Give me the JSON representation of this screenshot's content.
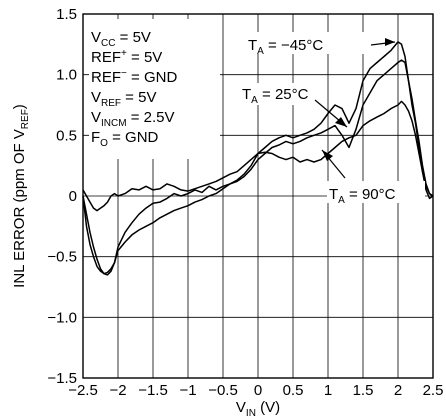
{
  "chart_data": {
    "type": "line",
    "title": "",
    "xlabel": {
      "base": "V",
      "sub": "IN",
      "unit": " (V)"
    },
    "ylabel": {
      "prefix": "INL ERROR (ppm OF V",
      "sub": "REF",
      "suffix": ")"
    },
    "xlim": [
      -2.5,
      2.5
    ],
    "ylim": [
      -1.5,
      1.5
    ],
    "grid": true,
    "legend": "none",
    "x_ticks": [
      {
        "v": -2.5,
        "label": "−2.5"
      },
      {
        "v": -2,
        "label": "−2"
      },
      {
        "v": -1.5,
        "label": "−1.5"
      },
      {
        "v": -1,
        "label": "−1"
      },
      {
        "v": -0.5,
        "label": "−0.5"
      },
      {
        "v": 0,
        "label": "0"
      },
      {
        "v": 0.5,
        "label": "0.5"
      },
      {
        "v": 1,
        "label": "1"
      },
      {
        "v": 1.5,
        "label": "1.5"
      },
      {
        "v": 2,
        "label": "2"
      },
      {
        "v": 2.5,
        "label": "2.5"
      }
    ],
    "y_ticks": [
      {
        "v": 1.5,
        "label": "1.5"
      },
      {
        "v": 1.0,
        "label": "1.0"
      },
      {
        "v": 0.5,
        "label": "0.5"
      },
      {
        "v": 0,
        "label": "0"
      },
      {
        "v": -0.5,
        "label": "−0.5"
      },
      {
        "v": -1.0,
        "label": "−1.0"
      },
      {
        "v": -1.5,
        "label": "−1.5"
      }
    ],
    "conditions": [
      {
        "base": "V",
        "sub": "CC",
        "rest": " = 5V"
      },
      {
        "base": "REF",
        "sup": "+",
        "rest": " = 5V"
      },
      {
        "base": "REF",
        "sup": "−",
        "rest": " = GND"
      },
      {
        "base": "V",
        "sub": "REF",
        "rest": " = 5V"
      },
      {
        "base": "V",
        "sub": "INCM",
        "rest": " = 2.5V"
      },
      {
        "base": "F",
        "sub": "O",
        "rest": " = GND"
      }
    ],
    "series": [
      {
        "name": "T_A = −45°C",
        "label": {
          "base": "T",
          "sub": "A",
          "rest": " = −45°C"
        },
        "x": [
          -2.5,
          -2.45,
          -2.4,
          -2.35,
          -2.3,
          -2.25,
          -2.2,
          -2.15,
          -2.1,
          -2.05,
          -2.0,
          -1.9,
          -1.8,
          -1.7,
          -1.6,
          -1.5,
          -1.4,
          -1.3,
          -1.2,
          -1.1,
          -1.0,
          -0.9,
          -0.8,
          -0.7,
          -0.6,
          -0.5,
          -0.4,
          -0.3,
          -0.2,
          -0.1,
          0.0,
          0.1,
          0.2,
          0.3,
          0.4,
          0.5,
          0.6,
          0.7,
          0.8,
          0.9,
          1.0,
          1.1,
          1.2,
          1.3,
          1.4,
          1.5,
          1.6,
          1.7,
          1.8,
          1.9,
          2.0,
          2.05,
          2.1,
          2.15,
          2.2,
          2.25,
          2.3,
          2.35,
          2.4,
          2.45,
          2.5
        ],
        "y": [
          0.0,
          -0.25,
          -0.4,
          -0.5,
          -0.58,
          -0.62,
          -0.64,
          -0.63,
          -0.6,
          -0.55,
          -0.45,
          -0.38,
          -0.32,
          -0.28,
          -0.25,
          -0.22,
          -0.18,
          -0.15,
          -0.12,
          -0.1,
          -0.08,
          -0.05,
          -0.03,
          0.0,
          0.02,
          0.06,
          0.1,
          0.13,
          0.18,
          0.25,
          0.35,
          0.4,
          0.45,
          0.48,
          0.5,
          0.48,
          0.5,
          0.52,
          0.55,
          0.6,
          0.68,
          0.75,
          0.72,
          0.6,
          0.72,
          0.95,
          1.05,
          1.1,
          1.15,
          1.2,
          1.27,
          1.25,
          1.15,
          0.95,
          0.75,
          0.6,
          0.4,
          0.2,
          0.05,
          -0.02,
          0.0
        ]
      },
      {
        "name": "T_A = 25°C",
        "label": {
          "base": "T",
          "sub": "A",
          "rest": " = 25°C"
        },
        "x": [
          -2.5,
          -2.45,
          -2.4,
          -2.35,
          -2.3,
          -2.25,
          -2.2,
          -2.15,
          -2.1,
          -2.05,
          -2.0,
          -1.9,
          -1.8,
          -1.7,
          -1.6,
          -1.5,
          -1.4,
          -1.3,
          -1.2,
          -1.1,
          -1.0,
          -0.9,
          -0.8,
          -0.7,
          -0.6,
          -0.5,
          -0.4,
          -0.3,
          -0.2,
          -0.1,
          0.0,
          0.1,
          0.2,
          0.3,
          0.4,
          0.5,
          0.6,
          0.7,
          0.8,
          0.9,
          1.0,
          1.1,
          1.2,
          1.3,
          1.4,
          1.5,
          1.6,
          1.7,
          1.8,
          1.9,
          2.0,
          2.05,
          2.1,
          2.15,
          2.2,
          2.25,
          2.3,
          2.35,
          2.4,
          2.45,
          2.5
        ],
        "y": [
          0.0,
          -0.15,
          -0.3,
          -0.42,
          -0.52,
          -0.6,
          -0.64,
          -0.65,
          -0.62,
          -0.55,
          -0.42,
          -0.3,
          -0.22,
          -0.15,
          -0.1,
          -0.06,
          -0.05,
          -0.02,
          0.02,
          0.0,
          0.02,
          0.05,
          0.03,
          0.08,
          0.05,
          0.08,
          0.1,
          0.12,
          0.16,
          0.22,
          0.3,
          0.35,
          0.4,
          0.42,
          0.45,
          0.43,
          0.45,
          0.48,
          0.5,
          0.52,
          0.55,
          0.58,
          0.5,
          0.4,
          0.55,
          0.75,
          0.85,
          0.95,
          1.0,
          1.05,
          1.1,
          1.12,
          1.1,
          0.95,
          0.8,
          0.62,
          0.45,
          0.25,
          0.1,
          0.02,
          0.0
        ]
      },
      {
        "name": "T_A = 90°C",
        "label": {
          "base": "T",
          "sub": "A",
          "rest": " = 90°C"
        },
        "x": [
          -2.5,
          -2.45,
          -2.4,
          -2.35,
          -2.3,
          -2.25,
          -2.2,
          -2.15,
          -2.1,
          -2.05,
          -2.0,
          -1.9,
          -1.8,
          -1.7,
          -1.6,
          -1.5,
          -1.4,
          -1.3,
          -1.2,
          -1.1,
          -1.0,
          -0.9,
          -0.8,
          -0.7,
          -0.6,
          -0.5,
          -0.4,
          -0.3,
          -0.2,
          -0.1,
          0.0,
          0.1,
          0.2,
          0.3,
          0.4,
          0.5,
          0.6,
          0.7,
          0.8,
          0.9,
          1.0,
          1.1,
          1.2,
          1.3,
          1.4,
          1.5,
          1.6,
          1.7,
          1.8,
          1.9,
          2.0,
          2.05,
          2.1,
          2.15,
          2.2,
          2.25,
          2.3,
          2.35,
          2.4,
          2.45,
          2.5
        ],
        "y": [
          0.05,
          0.0,
          -0.05,
          -0.1,
          -0.12,
          -0.1,
          -0.08,
          -0.05,
          0.0,
          0.02,
          0.0,
          0.02,
          0.06,
          0.05,
          0.08,
          0.05,
          0.06,
          0.1,
          0.08,
          0.05,
          0.04,
          0.06,
          0.08,
          0.1,
          0.12,
          0.15,
          0.18,
          0.2,
          0.25,
          0.3,
          0.35,
          0.36,
          0.35,
          0.32,
          0.3,
          0.32,
          0.28,
          0.3,
          0.28,
          0.3,
          0.35,
          0.4,
          0.45,
          0.48,
          0.5,
          0.58,
          0.62,
          0.65,
          0.68,
          0.72,
          0.75,
          0.78,
          0.75,
          0.7,
          0.62,
          0.5,
          0.35,
          0.2,
          0.08,
          0.02,
          0.0
        ]
      }
    ]
  }
}
